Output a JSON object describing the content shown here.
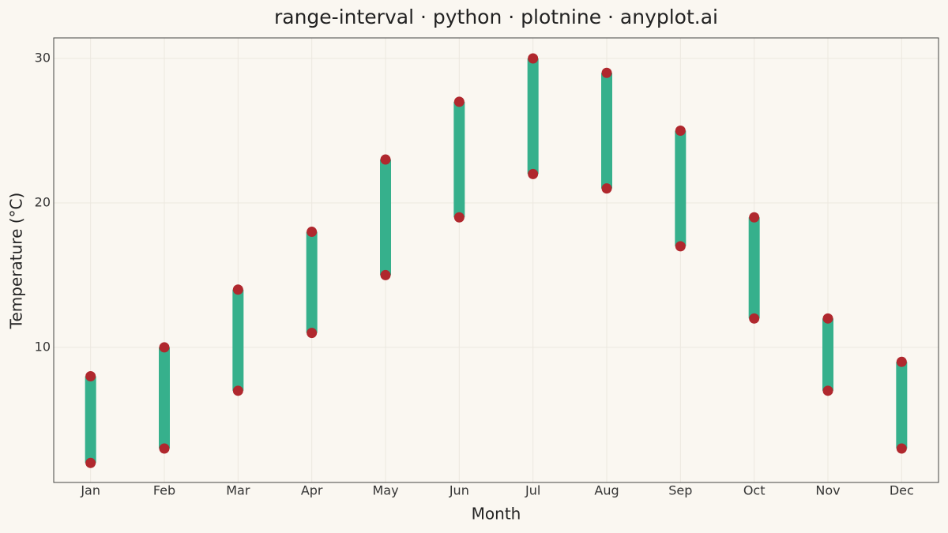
{
  "chart_data": {
    "type": "range-interval",
    "title": "range-interval · python · plotnine · anyplot.ai",
    "x_label": "Month",
    "y_label": "Temperature (°C)",
    "categories": [
      "Jan",
      "Feb",
      "Mar",
      "Apr",
      "May",
      "Jun",
      "Jul",
      "Aug",
      "Sep",
      "Oct",
      "Nov",
      "Dec"
    ],
    "low": [
      2,
      3,
      7,
      11,
      15,
      19,
      22,
      21,
      17,
      12,
      7,
      3
    ],
    "high": [
      8,
      10,
      14,
      18,
      23,
      27,
      30,
      29,
      25,
      19,
      12,
      9
    ],
    "bar_color": "#36b08c",
    "point_color": "#b0282e",
    "ylim": [
      0.65,
      31.42
    ],
    "yticks": [
      10,
      20,
      30
    ],
    "grid": true
  }
}
